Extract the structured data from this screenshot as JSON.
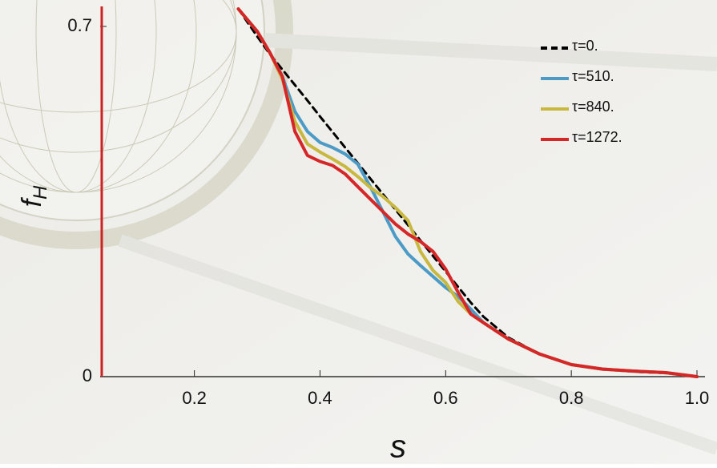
{
  "chart_data": {
    "type": "line",
    "x_label": "s",
    "y_label": "f",
    "y_label_subscript": "H",
    "x": [
      0.27,
      0.3,
      0.32,
      0.34,
      0.36,
      0.38,
      0.4,
      0.42,
      0.44,
      0.46,
      0.48,
      0.5,
      0.52,
      0.54,
      0.56,
      0.58,
      0.6,
      0.62,
      0.64,
      0.66,
      0.7,
      0.75,
      0.8,
      0.85,
      0.9,
      0.95,
      1.0
    ],
    "series": [
      {
        "name": "τ=0.",
        "color": "#000000",
        "dashed": true,
        "values": [
          0.735,
          0.68,
          0.645,
          0.614,
          0.583,
          0.552,
          0.52,
          0.489,
          0.458,
          0.427,
          0.396,
          0.365,
          0.334,
          0.303,
          0.272,
          0.241,
          0.21,
          0.179,
          0.148,
          0.12,
          0.078,
          0.045,
          0.024,
          0.015,
          0.01,
          0.007,
          0
        ]
      },
      {
        "name": "τ=510.",
        "color": "#4b9bc6",
        "values": [
          0.735,
          0.69,
          0.648,
          0.6,
          0.53,
          0.49,
          0.468,
          0.458,
          0.445,
          0.425,
          0.38,
          0.33,
          0.28,
          0.245,
          0.222,
          0.2,
          0.178,
          0.16,
          0.135,
          0.108,
          0.075,
          0.045,
          0.024,
          0.015,
          0.011,
          0.008,
          0
        ]
      },
      {
        "name": "τ=840.",
        "color": "#c8b840",
        "values": [
          0.735,
          0.69,
          0.648,
          0.595,
          0.51,
          0.465,
          0.449,
          0.435,
          0.42,
          0.4,
          0.378,
          0.36,
          0.338,
          0.312,
          0.25,
          0.212,
          0.188,
          0.15,
          0.125,
          0.108,
          0.075,
          0.045,
          0.024,
          0.015,
          0.011,
          0.008,
          0
        ]
      },
      {
        "name": "τ=1272.",
        "color": "#d62728",
        "values": [
          0.735,
          0.69,
          0.648,
          0.6,
          0.49,
          0.442,
          0.43,
          0.422,
          0.405,
          0.38,
          0.355,
          0.33,
          0.305,
          0.285,
          0.27,
          0.25,
          0.215,
          0.168,
          0.125,
          0.108,
          0.075,
          0.045,
          0.024,
          0.015,
          0.011,
          0.008,
          0
        ]
      }
    ],
    "xlim": [
      0.05,
      1.0
    ],
    "ylim": [
      0,
      0.74
    ],
    "xticks": [
      0.2,
      0.4,
      0.6,
      0.8,
      {
        "value": 1.0,
        "label": "1.0"
      }
    ],
    "yticks": [
      0,
      0.7
    ],
    "legend": "upper right"
  }
}
